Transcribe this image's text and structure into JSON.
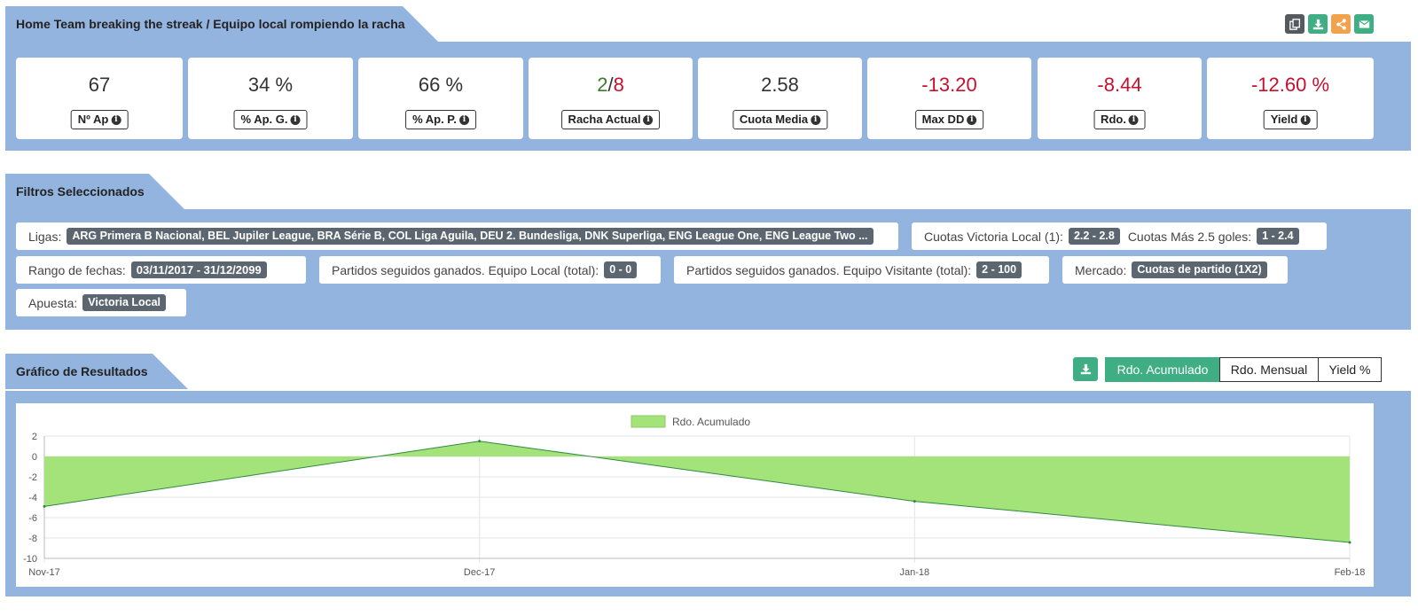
{
  "header": {
    "title": "Home Team breaking the streak / Equipo local rompiendo la racha",
    "actions": [
      {
        "icon": "copy-icon",
        "color": "#555a5f"
      },
      {
        "icon": "download-icon",
        "color": "#3fae84"
      },
      {
        "icon": "share-icon",
        "color": "#f2a24a"
      },
      {
        "icon": "mail-icon",
        "color": "#3fae84"
      }
    ]
  },
  "stats": [
    {
      "value": "67",
      "label": "Nº Ap"
    },
    {
      "value": "34 %",
      "label": "% Ap. G."
    },
    {
      "value": "66 %",
      "label": "% Ap. P."
    },
    {
      "streak_win": "2",
      "streak_sep": "/",
      "streak_loss": "8",
      "label": "Racha Actual"
    },
    {
      "value": "2.58",
      "label": "Cuota Media"
    },
    {
      "value": "-13.20",
      "label": "Max DD",
      "negative": true
    },
    {
      "value": "-8.44",
      "label": "Rdo.",
      "negative": true
    },
    {
      "value": "-12.60 %",
      "label": "Yield",
      "negative": true
    }
  ],
  "colors": {
    "negative": "#c8102e",
    "positive": "#3a7d2c",
    "accent": "#3fae84",
    "panel": "#94b4e0"
  },
  "filters": {
    "title": "Filtros Seleccionados",
    "ligas": {
      "label": "Ligas:",
      "value": "ARG Primera B Nacional, BEL Jupiler League, BRA Série B, COL Liga Aguila, DEU 2. Bundesliga, DNK Superliga, ENG League One, ENG League Two ..."
    },
    "cuotas_local": {
      "label": "Cuotas Victoria Local (1):",
      "value": "2.2 - 2.8"
    },
    "cuotas_goles": {
      "label": "Cuotas Más 2.5 goles:",
      "value": "1 - 2.4"
    },
    "rango": {
      "label": "Rango de fechas:",
      "value": "03/11/2017 - 31/12/2099"
    },
    "partidos_local": {
      "label": "Partidos seguidos ganados. Equipo Local (total):",
      "value": "0 - 0"
    },
    "partidos_visitante": {
      "label": "Partidos seguidos ganados. Equipo Visitante (total):",
      "value": "2 - 100"
    },
    "mercado": {
      "label": "Mercado:",
      "value": "Cuotas de partido (1X2)"
    },
    "apuesta": {
      "label": "Apuesta:",
      "value": "Victoria Local"
    }
  },
  "chart_section": {
    "title": "Gráfico de Resultados",
    "tabs": [
      {
        "label": "Rdo. Acumulado",
        "active": true
      },
      {
        "label": "Rdo. Mensual",
        "active": false
      },
      {
        "label": "Yield %",
        "active": false
      }
    ]
  },
  "chart_data": {
    "type": "area",
    "legend": [
      "Rdo. Acumulado"
    ],
    "legend_position": "top-center",
    "categories": [
      "Nov-17",
      "Dec-17",
      "Jan-18",
      "Feb-18"
    ],
    "series": [
      {
        "name": "Rdo. Acumulado",
        "values": [
          -4.9,
          1.5,
          -4.4,
          -8.44
        ],
        "color": "#a3e37a"
      }
    ],
    "ylim": [
      -10,
      2
    ],
    "yticks": [
      2,
      0,
      -2,
      -4,
      -6,
      -8,
      -10
    ],
    "grid": true
  }
}
